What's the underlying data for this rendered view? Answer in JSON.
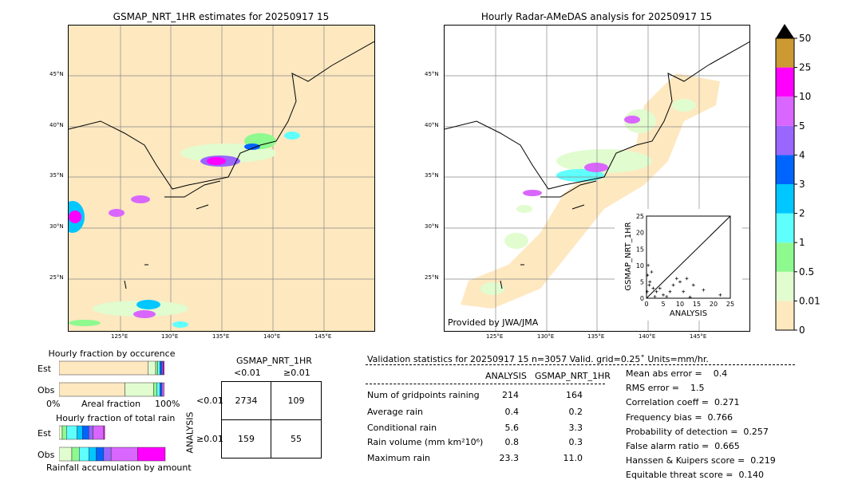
{
  "left_map": {
    "title": "GSMAP_NRT_1HR estimates for 20250917 15"
  },
  "right_map": {
    "title": "Hourly Radar-AMeDAS analysis for 20250917 15",
    "credit": "Provided by JWA/JMA"
  },
  "lat_labels": [
    "45°N",
    "40°N",
    "35°N",
    "30°N",
    "25°N"
  ],
  "lon_labels": [
    "125°E",
    "130°E",
    "135°E",
    "140°E",
    "145°E"
  ],
  "colorbar": {
    "ticks": [
      "0",
      "0.01",
      "0.5",
      "1",
      "2",
      "3",
      "4",
      "5",
      "10",
      "25",
      "50"
    ],
    "colors": [
      "#fee8c0",
      "#e1fccf",
      "#8ef98e",
      "#5ffffe",
      "#00c7ff",
      "#0064ff",
      "#9966ff",
      "#d966ff",
      "#ff00ff",
      "#cc9933"
    ]
  },
  "scatter": {
    "ylabel": "GSMAP_NRT_1HR",
    "xlabel": "ANALYSIS",
    "ticks": [
      "0",
      "5",
      "10",
      "15",
      "20",
      "25"
    ]
  },
  "occurrence": {
    "title": "Hourly fraction by occurence",
    "est": "Est",
    "obs": "Obs",
    "left": "0%",
    "mid": "Areal fraction",
    "right": "100%"
  },
  "total_rain": {
    "title": "Hourly fraction of total rain",
    "est": "Est",
    "obs": "Obs",
    "footer": "Rainfall accumulation by amount"
  },
  "contingency": {
    "title": "GSMAP_NRT_1HR",
    "col1": "<0.01",
    "col2": "≥0.01",
    "rowlabel": "ANALYSIS",
    "row1": "<0.01",
    "row2": "≥0.01",
    "cells": [
      "2734",
      "109",
      "159",
      "55"
    ]
  },
  "validation": {
    "header": "Validation statistics for 20250917 15  n=3057 Valid. grid=0.25˚ Units=mm/hr.",
    "col_a": "ANALYSIS",
    "col_b": "GSMAP_NRT_1HR",
    "rows": [
      [
        "Num of gridpoints raining",
        "214",
        "164"
      ],
      [
        "Average rain",
        "0.4",
        "0.2"
      ],
      [
        "Conditional rain",
        "5.6",
        "3.3"
      ],
      [
        "Rain volume (mm km²10⁶)",
        "0.8",
        "0.3"
      ],
      [
        "Maximum rain",
        "23.3",
        "11.0"
      ]
    ],
    "scores": [
      "Mean abs error =    0.4",
      "RMS error =    1.5",
      "Correlation coeff =  0.271",
      "Frequency bias =  0.766",
      "Probability of detection =  0.257",
      "False alarm ratio =  0.665",
      "Hanssen & Kuipers score =  0.219",
      "Equitable threat score =  0.140"
    ]
  },
  "chart_data": {
    "type": "scatter",
    "xlabel": "ANALYSIS",
    "ylabel": "GSMAP_NRT_1HR",
    "xlim": [
      0,
      25
    ],
    "ylim": [
      0,
      25
    ],
    "points": [
      [
        0.5,
        10
      ],
      [
        0.3,
        7
      ],
      [
        1,
        5
      ],
      [
        2,
        3
      ],
      [
        3,
        2
      ],
      [
        5,
        1
      ],
      [
        8,
        4
      ],
      [
        10,
        5
      ],
      [
        12,
        6
      ],
      [
        14,
        4
      ],
      [
        17,
        2.5
      ],
      [
        22,
        1
      ],
      [
        6,
        0.5
      ],
      [
        1.5,
        8
      ],
      [
        0.8,
        4
      ],
      [
        4,
        3
      ],
      [
        9,
        6
      ],
      [
        11,
        2
      ],
      [
        0.2,
        2
      ],
      [
        2.5,
        0.5
      ],
      [
        13,
        0.3
      ],
      [
        7,
        2
      ]
    ]
  }
}
